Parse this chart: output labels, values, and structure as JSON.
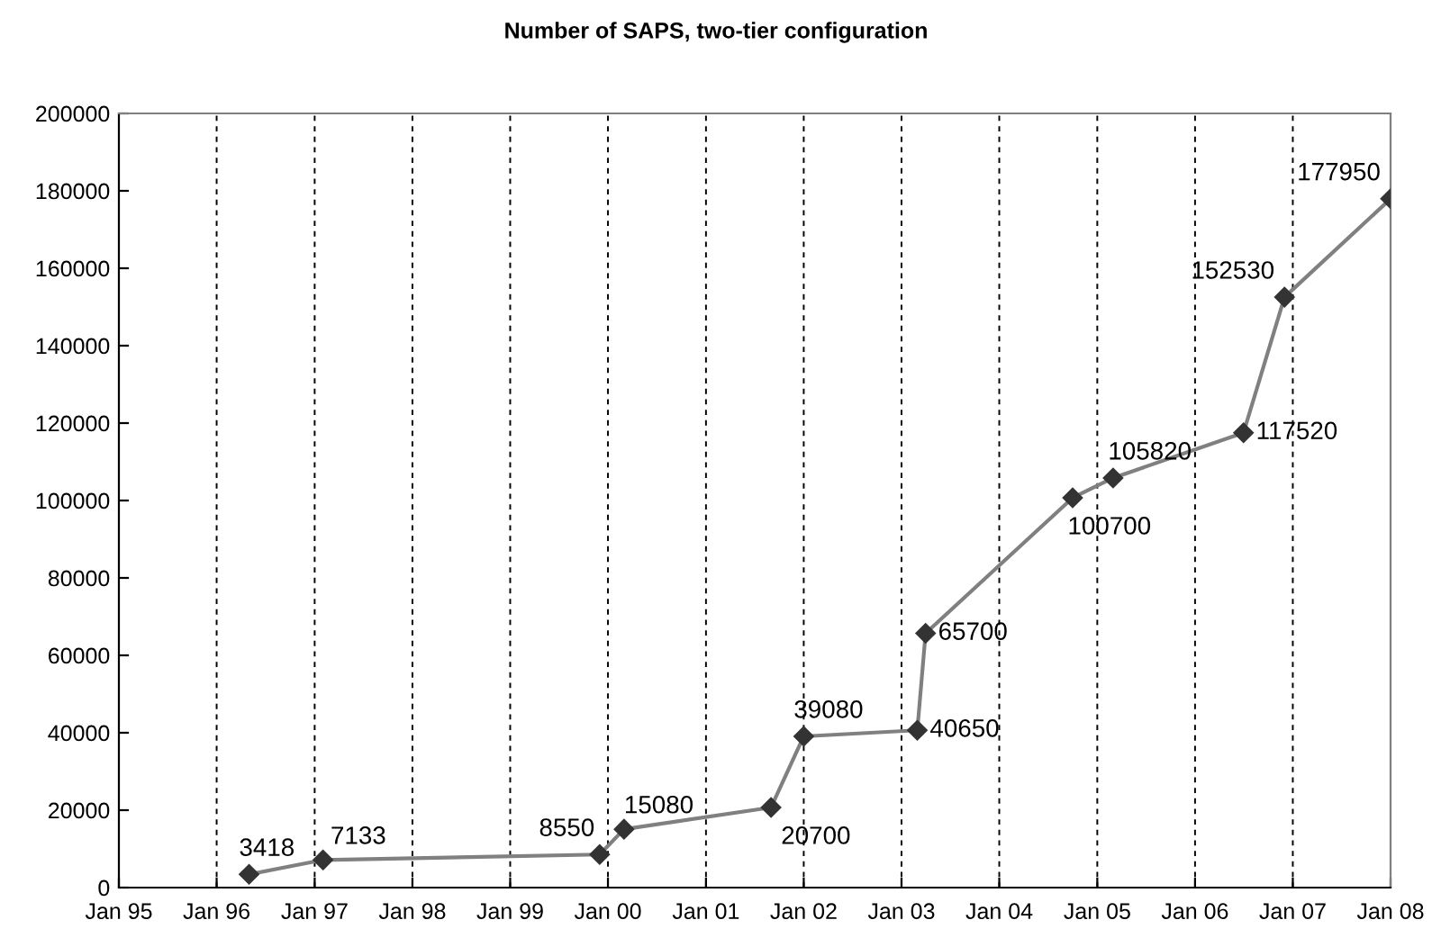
{
  "chart_data": {
    "type": "line",
    "title": "Number of SAPS, two-tier configuration",
    "x": [
      "1996-05",
      "1997-02",
      "1999-12",
      "2000-03",
      "2001-09",
      "2002-01",
      "2003-03",
      "2003-04",
      "2004-10",
      "2005-03",
      "2006-07",
      "2006-12",
      "2008-01"
    ],
    "series": [
      {
        "color": "#808080",
        "values": [
          3418,
          7133,
          8550,
          15080,
          20700,
          39080,
          40650,
          65700,
          100700,
          105820,
          117520,
          152530,
          177950
        ]
      }
    ],
    "data_labels": true,
    "marker": "diamond",
    "line_style": "solid",
    "grid": "x",
    "legend": false,
    "ylim": [
      0,
      200000
    ],
    "yticks": [
      0,
      20000,
      40000,
      60000,
      80000,
      100000,
      120000,
      140000,
      160000,
      180000,
      200000
    ],
    "xlim": [
      "1995-01",
      "2008-01"
    ],
    "xticks": [
      {
        "value": "1995-01",
        "label": "Jan 95"
      },
      {
        "value": "1996-01",
        "label": "Jan 96"
      },
      {
        "value": "1997-01",
        "label": "Jan 97"
      },
      {
        "value": "1998-01",
        "label": "Jan 98"
      },
      {
        "value": "1999-01",
        "label": "Jan 99"
      },
      {
        "value": "2000-01",
        "label": "Jan 00"
      },
      {
        "value": "2001-01",
        "label": "Jan 01"
      },
      {
        "value": "2002-01",
        "label": "Jan 02"
      },
      {
        "value": "2003-01",
        "label": "Jan 03"
      },
      {
        "value": "2004-01",
        "label": "Jan 04"
      },
      {
        "value": "2005-01",
        "label": "Jan 05"
      },
      {
        "value": "2006-01",
        "label": "Jan 06"
      },
      {
        "value": "2007-01",
        "label": "Jan 07"
      },
      {
        "value": "2008-01",
        "label": "Jan 08"
      }
    ]
  }
}
